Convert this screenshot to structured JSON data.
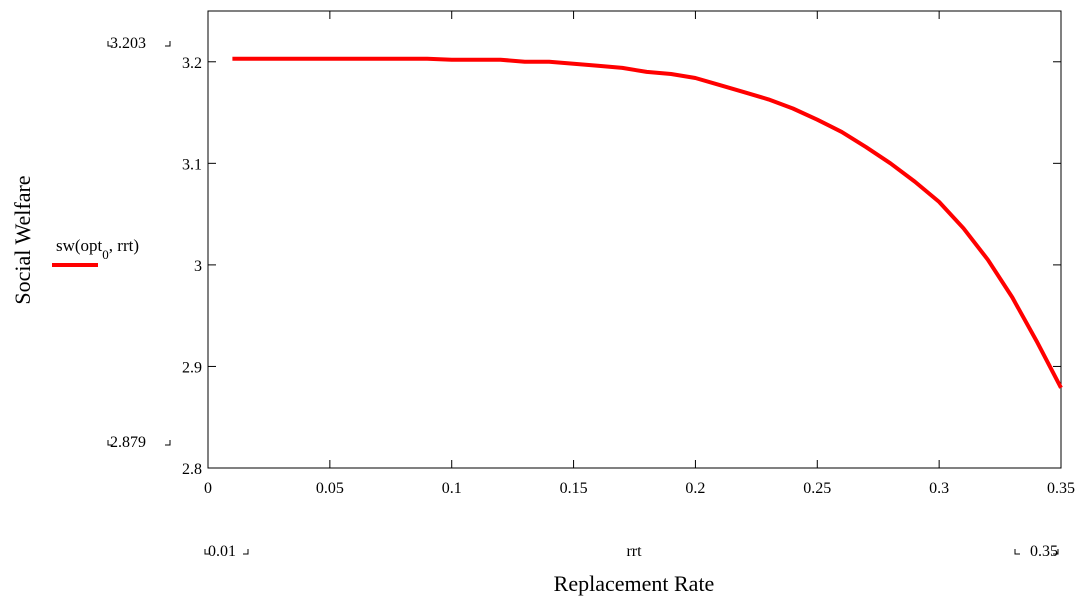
{
  "chart_data": {
    "type": "line",
    "xlabel": "Replacement Rate",
    "ylabel": "Social Welfare",
    "xlim": [
      0,
      0.35
    ],
    "ylim": [
      2.8,
      3.25
    ],
    "x_ticks": [
      {
        "value": 0,
        "label": "0"
      },
      {
        "value": 0.05,
        "label": "0.05"
      },
      {
        "value": 0.1,
        "label": "0.1"
      },
      {
        "value": 0.15,
        "label": "0.15"
      },
      {
        "value": 0.2,
        "label": "0.2"
      },
      {
        "value": 0.25,
        "label": "0.25"
      },
      {
        "value": 0.3,
        "label": "0.3"
      },
      {
        "value": 0.35,
        "label": "0.35"
      }
    ],
    "y_ticks": [
      {
        "value": 2.8,
        "label": "2.8"
      },
      {
        "value": 2.9,
        "label": "2.9"
      },
      {
        "value": 3.0,
        "label": "3"
      },
      {
        "value": 3.1,
        "label": "3.1"
      },
      {
        "value": 3.2,
        "label": "3.2"
      }
    ],
    "x_range_labels": {
      "min": "0.01",
      "max": "0.35",
      "variable": "rrt"
    },
    "y_range_labels": {
      "max": "3.203",
      "min": "2.879"
    },
    "grid": false,
    "legend": {
      "placement": "left",
      "entry": "sw(opt0, rrt)"
    },
    "series": [
      {
        "name": "sw(opt0, rrt)",
        "color": "#ff0000",
        "x": [
          0.01,
          0.02,
          0.03,
          0.04,
          0.05,
          0.06,
          0.07,
          0.08,
          0.09,
          0.1,
          0.11,
          0.12,
          0.13,
          0.14,
          0.15,
          0.16,
          0.17,
          0.18,
          0.19,
          0.2,
          0.21,
          0.22,
          0.23,
          0.24,
          0.25,
          0.26,
          0.27,
          0.28,
          0.29,
          0.3,
          0.31,
          0.32,
          0.33,
          0.34,
          0.35
        ],
        "y": [
          3.203,
          3.203,
          3.203,
          3.203,
          3.203,
          3.203,
          3.203,
          3.203,
          3.203,
          3.202,
          3.202,
          3.202,
          3.2,
          3.2,
          3.198,
          3.196,
          3.194,
          3.19,
          3.188,
          3.184,
          3.177,
          3.17,
          3.163,
          3.154,
          3.143,
          3.131,
          3.116,
          3.1,
          3.082,
          3.062,
          3.036,
          3.005,
          2.968,
          2.925,
          2.879
        ]
      }
    ]
  }
}
